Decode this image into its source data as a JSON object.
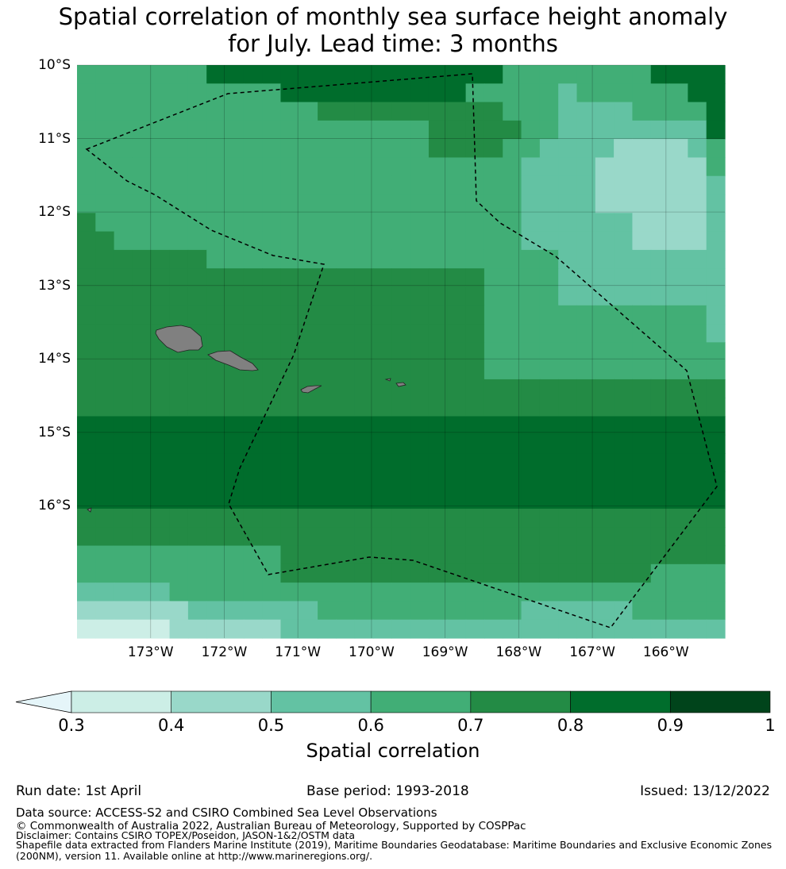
{
  "title_line1": "Spatial correlation of monthly sea surface height anomaly",
  "title_line2": "for July. Lead time: 3 months",
  "map": {
    "lon_range": [
      -174.0,
      -165.2
    ],
    "lat_range": [
      -17.8,
      -10.0
    ],
    "lat_ticks": [
      {
        "value": -10,
        "label": "10°S"
      },
      {
        "value": -11,
        "label": "11°S"
      },
      {
        "value": -12,
        "label": "12°S"
      },
      {
        "value": -13,
        "label": "13°S"
      },
      {
        "value": -14,
        "label": "14°S"
      },
      {
        "value": -15,
        "label": "15°S"
      },
      {
        "value": -16,
        "label": "16°S"
      }
    ],
    "lon_ticks": [
      {
        "value": -173,
        "label": "173°W"
      },
      {
        "value": -172,
        "label": "172°W"
      },
      {
        "value": -171,
        "label": "171°W"
      },
      {
        "value": -170,
        "label": "170°W"
      },
      {
        "value": -169,
        "label": "169°W"
      },
      {
        "value": -168,
        "label": "168°W"
      },
      {
        "value": -167,
        "label": "167°W"
      },
      {
        "value": -166,
        "label": "166°W"
      }
    ],
    "grid_cols": 35,
    "grid_rows": 31,
    "grid_rows_desc": "class index per cell (0:0.3-0.4,1:0.4-0.5,2:0.5-0.6,3:0.6-0.7,4:0.7-0.8,5:0.8-0.9,6:0.9-1)",
    "grid": [
      "33333335555555555555555333333335555",
      "33333333333555555555533333233333355",
      "33333333333334444444444333222233335",
      "33333333333333333334444433222222225",
      "33333333333333333334444332222111123",
      "33333333333333333333333322221111113",
      "33333333333333333333333322221111112",
      "33333333333333333333333322221111112",
      "43333333333333333333333322222211112",
      "44333333333333333333333322222211112",
      "44444443333333333333333333222222222",
      "44444444444444444444443333222222222",
      "44444444444444444444443333222222222",
      "44444444444444444444443333333333332",
      "44444444444444444444443333333333332",
      "44444444444444444444443333333333333",
      "44444444444444444444443333333333333",
      "44444444444444444444444444444444444",
      "44444444444444444444444444444444444",
      "55555555555555555555555555555555555",
      "55555555555555555555555555555555555",
      "55555555555555555555555555555555555",
      "55555555555555555555555555555555555",
      "55555555555555555555555555555555555",
      "44444444444444444444444444444444444",
      "44444444444444444444444444444444444",
      "33333333333444444444444444444444444",
      "33333333333444444444444444444443333",
      "22222333333333333333333333333333333",
      "11111122222223333333333322222233333",
      "00000111111222222222222222222222222"
    ],
    "colors": [
      "#cceee6",
      "#99d8c9",
      "#63c2a3",
      "#41ae76",
      "#238b45",
      "#006d2c",
      "#00441b"
    ]
  },
  "colorbar": {
    "ticks": [
      "0.3",
      "0.4",
      "0.5",
      "0.6",
      "0.7",
      "0.8",
      "0.9",
      "1"
    ],
    "extend_color": "#e5f5f9",
    "label": "Spatial correlation"
  },
  "footer": {
    "run_date": "Run date: 1st April",
    "base_period": "Base period: 1993-2018",
    "issued": "Issued: 13/12/2022",
    "data_source": "Data source: ACCESS-S2 and CSIRO Combined Sea Level Observations",
    "copyright": "© Commonwealth of Australia 2022, Australian Bureau of Meteorology, Supported by COSPPac",
    "disclaimer": "Disclaimer: Contains CSIRO TOPEX/Poseidon, JASON-1&2/OSTM data",
    "shapefile_line1": "Shapefile data extracted from Flanders Marine Institute (2019), Maritime Boundaries Geodatabase: Maritime Boundaries and Exclusive Economic Zones",
    "shapefile_line2": "(200NM), version 11. Available online at http://www.marineregions.org/."
  }
}
